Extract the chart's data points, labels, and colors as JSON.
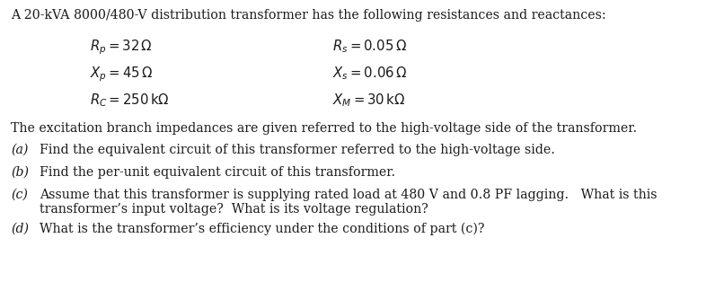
{
  "title": "A 20-kVA 8000/480-V distribution transformer has the following resistances and reactances:",
  "param_left": [
    "$R_p = 32\\,\\Omega$",
    "$X_p = 45\\,\\Omega$",
    "$R_C = 250\\,\\mathrm{k}\\Omega$"
  ],
  "param_right": [
    "$R_s = 0.05\\,\\Omega$",
    "$X_s = 0.06\\,\\Omega$",
    "$X_M = 30\\,\\mathrm{k}\\Omega$"
  ],
  "excitation": "The excitation branch impedances are given referred to the high-voltage side of the transformer.",
  "q_labels": [
    "(a)",
    "(b)",
    "(c)",
    "(d)"
  ],
  "q_texts_line1": [
    "Find the equivalent circuit of this transformer referred to the high-voltage side.",
    "Find the per-unit equivalent circuit of this transformer.",
    "Assume that this transformer is supplying rated load at 480 V and 0.8 PF lagging.   What is this",
    "What is the transformer’s efficiency under the conditions of part (c)?"
  ],
  "q_text_c_line2": "transformer’s input voltage?  What is its voltage regulation?",
  "bg_color": "#ffffff",
  "text_color": "#1a1a1a",
  "fontsize": 10.2
}
